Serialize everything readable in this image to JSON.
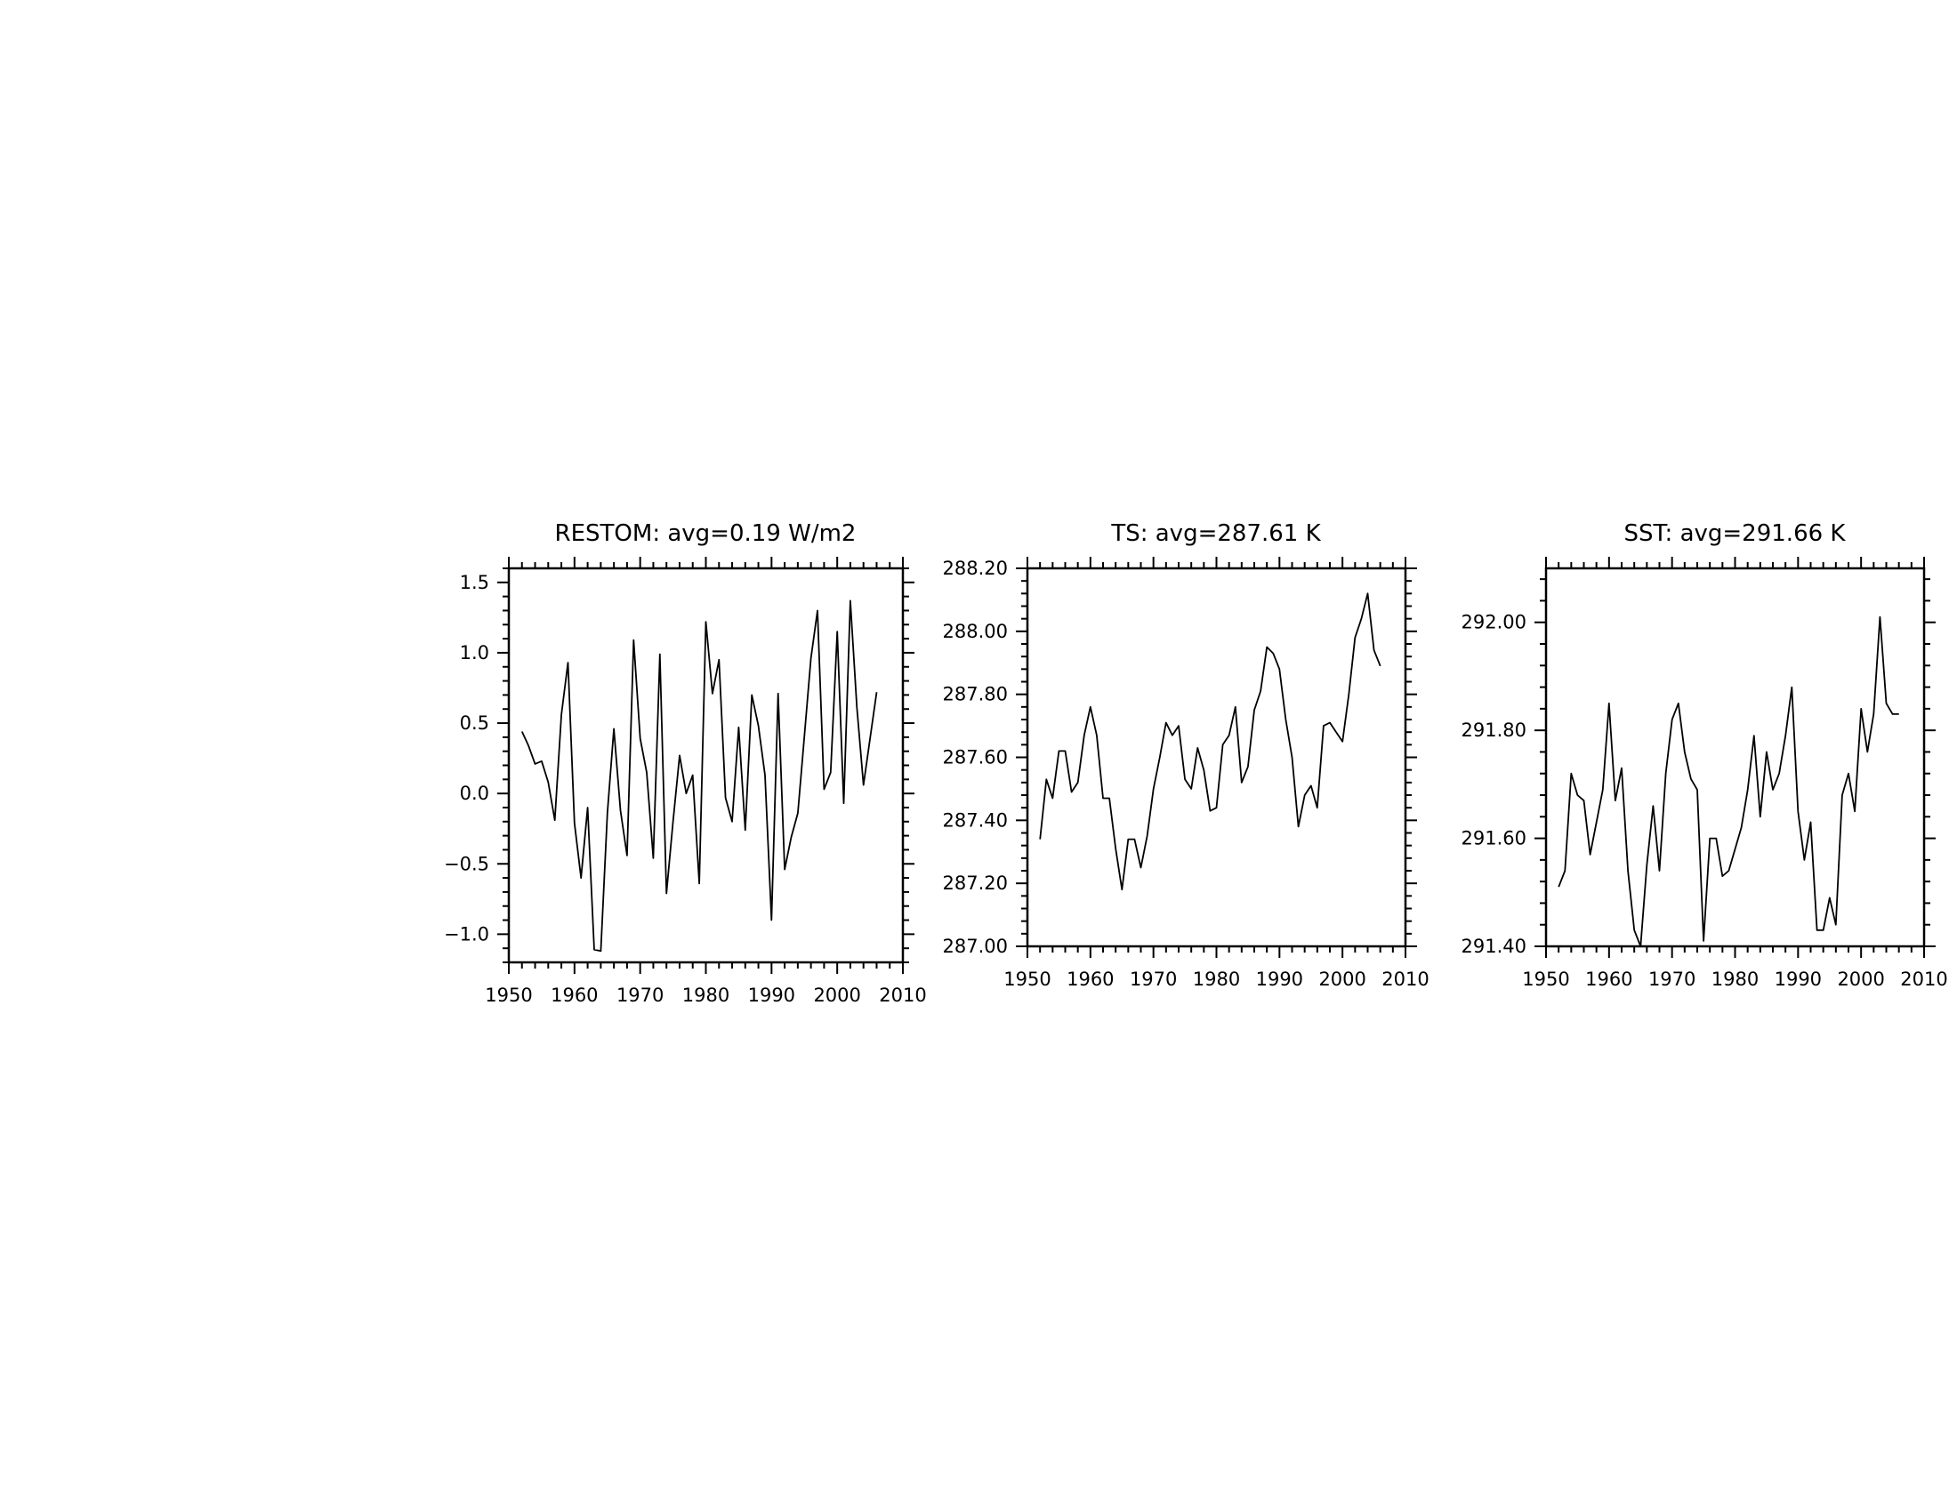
{
  "chart_data": [
    {
      "type": "line",
      "title": "RESTOM: avg=0.19 W/m2",
      "xlabel": "",
      "ylabel": "",
      "xlim": [
        1950,
        2010
      ],
      "ylim": [
        -1.2,
        1.6
      ],
      "xticks": [
        1950,
        1960,
        1970,
        1980,
        1990,
        2000,
        2010
      ],
      "xtick_labels": [
        "1950",
        "1960",
        "1970",
        "1980",
        "1990",
        "2000",
        "2010"
      ],
      "yticks": [
        -1.0,
        -0.5,
        0.0,
        0.5,
        1.0,
        1.5
      ],
      "ytick_labels": [
        "−1.0",
        "−0.5",
        "0.0",
        "0.5",
        "1.0",
        "1.5"
      ],
      "grid": false,
      "line_color": "#000000",
      "x": [
        1952,
        1953,
        1954,
        1955,
        1956,
        1957,
        1958,
        1959,
        1960,
        1961,
        1962,
        1963,
        1964,
        1965,
        1966,
        1967,
        1968,
        1969,
        1970,
        1971,
        1972,
        1973,
        1974,
        1975,
        1976,
        1977,
        1978,
        1979,
        1980,
        1981,
        1982,
        1983,
        1984,
        1985,
        1986,
        1987,
        1988,
        1989,
        1990,
        1991,
        1992,
        1993,
        1994,
        1995,
        1996,
        1997,
        1998,
        1999,
        2000,
        2001,
        2002,
        2003,
        2004,
        2005,
        2006
      ],
      "y": [
        0.44,
        0.34,
        0.21,
        0.23,
        0.08,
        -0.19,
        0.56,
        0.93,
        -0.21,
        -0.6,
        -0.1,
        -1.11,
        -1.12,
        -0.14,
        0.46,
        -0.12,
        -0.44,
        1.09,
        0.39,
        0.15,
        -0.46,
        0.99,
        -0.71,
        -0.2,
        0.27,
        0.0,
        0.13,
        -0.64,
        1.22,
        0.71,
        0.95,
        -0.03,
        -0.2,
        0.47,
        -0.26,
        0.7,
        0.48,
        0.13,
        -0.9,
        0.71,
        -0.54,
        -0.31,
        -0.14,
        0.41,
        0.96,
        1.3,
        0.03,
        0.15,
        1.15,
        -0.07,
        1.37,
        0.61,
        0.06,
        0.39,
        0.72
      ]
    },
    {
      "type": "line",
      "title": "TS: avg=287.61 K",
      "xlabel": "",
      "ylabel": "",
      "xlim": [
        1950,
        2010
      ],
      "ylim": [
        287.0,
        288.2
      ],
      "xticks": [
        1950,
        1960,
        1970,
        1980,
        1990,
        2000,
        2010
      ],
      "xtick_labels": [
        "1950",
        "1960",
        "1970",
        "1980",
        "1990",
        "2000",
        "2010"
      ],
      "yticks": [
        287.0,
        287.2,
        287.4,
        287.6,
        287.8,
        288.0,
        288.2
      ],
      "ytick_labels": [
        "287.00",
        "287.20",
        "287.40",
        "287.60",
        "287.80",
        "288.00",
        "288.20"
      ],
      "grid": false,
      "line_color": "#000000",
      "x": [
        1952,
        1953,
        1954,
        1955,
        1956,
        1957,
        1958,
        1959,
        1960,
        1961,
        1962,
        1963,
        1964,
        1965,
        1966,
        1967,
        1968,
        1969,
        1970,
        1971,
        1972,
        1973,
        1974,
        1975,
        1976,
        1977,
        1978,
        1979,
        1980,
        1981,
        1982,
        1983,
        1984,
        1985,
        1986,
        1987,
        1988,
        1989,
        1990,
        1991,
        1992,
        1993,
        1994,
        1995,
        1996,
        1997,
        1998,
        1999,
        2000,
        2001,
        2002,
        2003,
        2004,
        2005,
        2006
      ],
      "y": [
        287.34,
        287.53,
        287.47,
        287.62,
        287.62,
        287.49,
        287.52,
        287.67,
        287.76,
        287.67,
        287.47,
        287.47,
        287.31,
        287.18,
        287.34,
        287.34,
        287.25,
        287.35,
        287.5,
        287.6,
        287.71,
        287.67,
        287.7,
        287.53,
        287.5,
        287.63,
        287.56,
        287.43,
        287.44,
        287.64,
        287.67,
        287.76,
        287.52,
        287.57,
        287.75,
        287.81,
        287.95,
        287.93,
        287.88,
        287.72,
        287.6,
        287.38,
        287.48,
        287.51,
        287.44,
        287.7,
        287.71,
        287.68,
        287.65,
        287.8,
        287.98,
        288.04,
        288.12,
        287.94,
        287.89
      ]
    },
    {
      "type": "line",
      "title": "SST: avg=291.66 K",
      "xlabel": "",
      "ylabel": "",
      "xlim": [
        1950,
        2010
      ],
      "ylim": [
        291.4,
        292.1
      ],
      "xticks": [
        1950,
        1960,
        1970,
        1980,
        1990,
        2000,
        2010
      ],
      "xtick_labels": [
        "1950",
        "1960",
        "1970",
        "1980",
        "1990",
        "2000",
        "2010"
      ],
      "yticks": [
        291.4,
        291.6,
        291.8,
        292.0
      ],
      "ytick_labels": [
        "291.40",
        "291.60",
        "291.80",
        "292.00"
      ],
      "grid": false,
      "line_color": "#000000",
      "x": [
        1952,
        1953,
        1954,
        1955,
        1956,
        1957,
        1958,
        1959,
        1960,
        1961,
        1962,
        1963,
        1964,
        1965,
        1966,
        1967,
        1968,
        1969,
        1970,
        1971,
        1972,
        1973,
        1974,
        1975,
        1976,
        1977,
        1978,
        1979,
        1980,
        1981,
        1982,
        1983,
        1984,
        1985,
        1986,
        1987,
        1988,
        1989,
        1990,
        1991,
        1992,
        1993,
        1994,
        1995,
        1996,
        1997,
        1998,
        1999,
        2000,
        2001,
        2002,
        2003,
        2004,
        2005,
        2006
      ],
      "y": [
        291.51,
        291.54,
        291.72,
        291.68,
        291.67,
        291.57,
        291.63,
        291.69,
        291.85,
        291.67,
        291.73,
        291.54,
        291.43,
        291.4,
        291.55,
        291.66,
        291.54,
        291.72,
        291.82,
        291.85,
        291.76,
        291.71,
        291.69,
        291.41,
        291.6,
        291.6,
        291.53,
        291.54,
        291.58,
        291.62,
        291.69,
        291.79,
        291.64,
        291.76,
        291.69,
        291.72,
        291.79,
        291.88,
        291.65,
        291.56,
        291.63,
        291.43,
        291.43,
        291.49,
        291.44,
        291.68,
        291.72,
        291.65,
        291.84,
        291.76,
        291.83,
        292.01,
        291.85,
        291.83,
        291.83
      ]
    }
  ]
}
